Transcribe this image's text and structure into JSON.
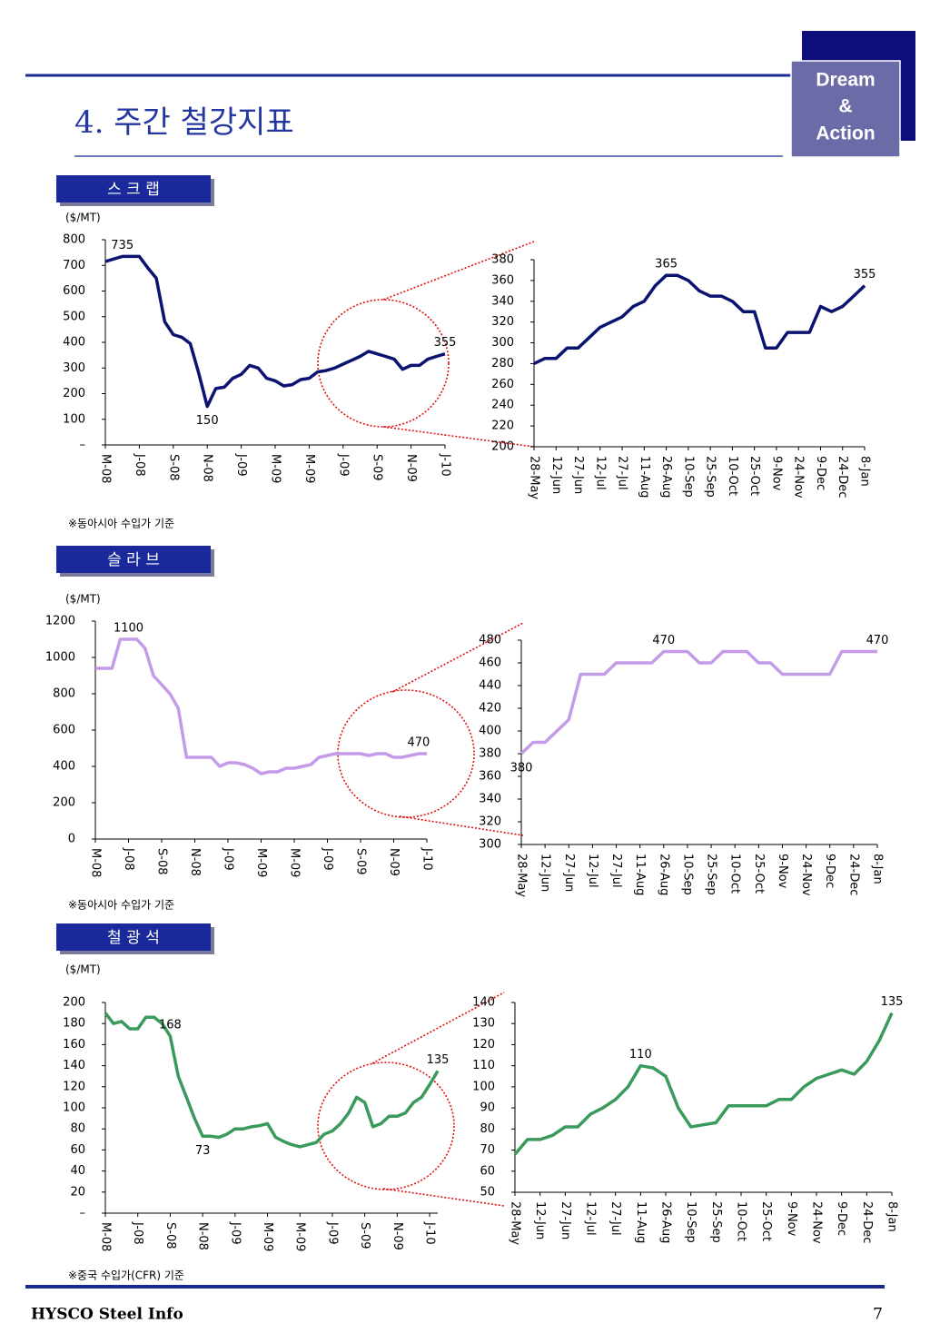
{
  "header": {
    "title": "4. 주간 철강지표",
    "logo": [
      "Dream",
      "&",
      "Action"
    ]
  },
  "sections": [
    {
      "label": "스 크 랩",
      "note": "※동아시아 수입가 기준"
    },
    {
      "label": "슬 라 브",
      "note": "※동아시아 수입가 기준"
    },
    {
      "label": "철 광 석",
      "note": "※중국 수입가(CFR) 기준"
    }
  ],
  "footer": {
    "left": "HYSCO Steel Info",
    "page": "7"
  },
  "chart_data": [
    {
      "type": "line",
      "ylabel": "($/MT)",
      "color": "#0a1470",
      "ylim": [
        0,
        800
      ],
      "yticks": [
        {
          "value": 0,
          "label": "–"
        },
        100,
        200,
        300,
        400,
        500,
        600,
        700,
        800
      ],
      "categories": [
        "M-08",
        null,
        null,
        null,
        "J-08",
        null,
        null,
        null,
        "S-08",
        null,
        null,
        null,
        "N-08",
        null,
        null,
        null,
        "J-09",
        null,
        null,
        null,
        "M-09",
        null,
        null,
        null,
        "M-09",
        null,
        null,
        null,
        "J-09",
        null,
        null,
        null,
        "S-09",
        null,
        null,
        null,
        "N-09",
        null,
        null,
        null,
        "J-10"
      ],
      "values": [
        715,
        725,
        735,
        735,
        735,
        690,
        650,
        480,
        430,
        420,
        395,
        280,
        150,
        220,
        225,
        260,
        275,
        310,
        300,
        260,
        250,
        230,
        235,
        255,
        260,
        285,
        290,
        300,
        315,
        330,
        345,
        365,
        355,
        345,
        335,
        295,
        310,
        310,
        335,
        345,
        355
      ],
      "value_labels": [
        null,
        null,
        "735",
        null,
        null,
        null,
        null,
        null,
        null,
        null,
        null,
        null,
        "150",
        null,
        null,
        null,
        null,
        null,
        null,
        null,
        null,
        null,
        null,
        null,
        null,
        null,
        null,
        null,
        null,
        null,
        null,
        null,
        null,
        null,
        null,
        null,
        null,
        null,
        null,
        null,
        "355"
      ]
    },
    {
      "type": "line",
      "color": "#0a1470",
      "ylim": [
        200,
        380
      ],
      "yticks": [
        200,
        220,
        240,
        260,
        280,
        300,
        320,
        340,
        360,
        380
      ],
      "categories": [
        "28-May",
        null,
        "12-Jun",
        null,
        "27-Jun",
        null,
        "12-Jul",
        null,
        "27-Jul",
        null,
        "11-Aug",
        null,
        "26-Aug",
        null,
        "10-Sep",
        null,
        "25-Sep",
        null,
        "10-Oct",
        null,
        "25-Oct",
        null,
        "9-Nov",
        null,
        "24-Nov",
        null,
        "9-Dec",
        null,
        "24-Dec",
        null,
        "8-Jan"
      ],
      "values": [
        280,
        285,
        285,
        295,
        295,
        305,
        315,
        320,
        325,
        335,
        340,
        355,
        365,
        365,
        360,
        350,
        345,
        345,
        340,
        330,
        330,
        295,
        295,
        310,
        310,
        310,
        335,
        330,
        335,
        345,
        355
      ],
      "value_labels": [
        null,
        null,
        null,
        null,
        null,
        null,
        null,
        null,
        null,
        null,
        null,
        null,
        "365",
        null,
        null,
        null,
        null,
        null,
        null,
        null,
        null,
        null,
        null,
        null,
        null,
        null,
        null,
        null,
        null,
        null,
        "355"
      ]
    },
    {
      "type": "line",
      "ylabel": "($/MT)",
      "color": "#c49be8",
      "ylim": [
        0,
        1200
      ],
      "yticks": [
        0,
        200,
        400,
        600,
        800,
        1000,
        1200
      ],
      "categories": [
        "M-08",
        null,
        null,
        null,
        "J-08",
        null,
        null,
        null,
        "S-08",
        null,
        null,
        null,
        "N-08",
        null,
        null,
        null,
        "J-09",
        null,
        null,
        null,
        "M-09",
        null,
        null,
        null,
        "M-09",
        null,
        null,
        null,
        "J-09",
        null,
        null,
        null,
        "S-09",
        null,
        null,
        null,
        "N-09",
        null,
        null,
        null,
        "J-10"
      ],
      "values": [
        940,
        940,
        940,
        1100,
        1100,
        1100,
        1050,
        900,
        850,
        800,
        720,
        450,
        450,
        450,
        450,
        400,
        420,
        420,
        410,
        390,
        360,
        370,
        370,
        390,
        390,
        400,
        410,
        450,
        460,
        470,
        470,
        470,
        470,
        460,
        470,
        470,
        450,
        450,
        460,
        470,
        470
      ],
      "value_labels": [
        null,
        null,
        null,
        null,
        "1100",
        null,
        null,
        null,
        null,
        null,
        null,
        null,
        null,
        null,
        null,
        null,
        null,
        null,
        null,
        null,
        null,
        null,
        null,
        null,
        null,
        null,
        null,
        null,
        null,
        null,
        null,
        null,
        null,
        null,
        null,
        null,
        null,
        null,
        null,
        "470",
        null
      ]
    },
    {
      "type": "line",
      "color": "#c49be8",
      "ylim": [
        300,
        480
      ],
      "yticks": [
        300,
        320,
        340,
        360,
        380,
        400,
        420,
        440,
        460,
        480
      ],
      "categories": [
        "28-May",
        null,
        "12-Jun",
        null,
        "27-Jun",
        null,
        "12-Jul",
        null,
        "27-Jul",
        null,
        "11-Aug",
        null,
        "26-Aug",
        null,
        "10-Sep",
        null,
        "25-Sep",
        null,
        "10-Oct",
        null,
        "25-Oct",
        null,
        "9-Nov",
        null,
        "24-Nov",
        null,
        "9-Dec",
        null,
        "24-Dec",
        null,
        "8-Jan"
      ],
      "values": [
        380,
        390,
        390,
        400,
        410,
        450,
        450,
        450,
        460,
        460,
        460,
        460,
        470,
        470,
        470,
        460,
        460,
        470,
        470,
        470,
        460,
        460,
        450,
        450,
        450,
        450,
        450,
        470,
        470,
        470,
        470
      ],
      "value_labels": [
        "380",
        null,
        null,
        null,
        null,
        null,
        null,
        null,
        null,
        null,
        null,
        null,
        "470",
        null,
        null,
        null,
        null,
        null,
        null,
        null,
        null,
        null,
        null,
        null,
        null,
        null,
        null,
        null,
        null,
        null,
        "470"
      ]
    },
    {
      "type": "line",
      "ylabel": "($/MT)",
      "color": "#3a9a5c",
      "ylim": [
        0,
        200
      ],
      "yticks": [
        {
          "value": 0,
          "label": "–"
        },
        20,
        40,
        60,
        80,
        100,
        120,
        140,
        160,
        180,
        200
      ],
      "categories": [
        "M-08",
        null,
        null,
        null,
        "J-08",
        null,
        null,
        null,
        "S-08",
        null,
        null,
        null,
        "N-08",
        null,
        null,
        null,
        "J-09",
        null,
        null,
        null,
        "M-09",
        null,
        null,
        null,
        "M-09",
        null,
        null,
        null,
        "J-09",
        null,
        null,
        null,
        "S-09",
        null,
        null,
        null,
        "N-09",
        null,
        null,
        null,
        "J-10",
        null
      ],
      "values": [
        190,
        180,
        182,
        175,
        175,
        186,
        186,
        180,
        168,
        130,
        110,
        90,
        73,
        73,
        72,
        75,
        80,
        80,
        82,
        83,
        85,
        72,
        68,
        65,
        63,
        65,
        67,
        75,
        78,
        85,
        95,
        110,
        105,
        82,
        85,
        92,
        92,
        95,
        105,
        110,
        122,
        135
      ],
      "value_labels": [
        null,
        null,
        null,
        null,
        null,
        null,
        null,
        null,
        "168",
        null,
        null,
        null,
        "73",
        null,
        null,
        null,
        null,
        null,
        null,
        null,
        null,
        null,
        null,
        null,
        null,
        null,
        null,
        null,
        null,
        null,
        null,
        null,
        null,
        null,
        null,
        null,
        null,
        null,
        null,
        null,
        null,
        "135"
      ]
    },
    {
      "type": "line",
      "color": "#3a9a5c",
      "ylim": [
        50,
        140
      ],
      "yticks": [
        50,
        60,
        70,
        80,
        90,
        100,
        110,
        120,
        130,
        140
      ],
      "categories": [
        "28-May",
        null,
        "12-Jun",
        null,
        "27-Jun",
        null,
        "12-Jul",
        null,
        "27-Jul",
        null,
        "11-Aug",
        null,
        "26-Aug",
        null,
        "10-Sep",
        null,
        "25-Sep",
        null,
        "10-Oct",
        null,
        "25-Oct",
        null,
        "9-Nov",
        null,
        "24-Nov",
        null,
        "9-Dec",
        null,
        "24-Dec",
        null,
        "8-Jan"
      ],
      "values": [
        68,
        75,
        75,
        77,
        81,
        81,
        87,
        90,
        94,
        100,
        110,
        109,
        105,
        90,
        81,
        82,
        83,
        91,
        91,
        91,
        91,
        94,
        94,
        100,
        104,
        106,
        108,
        106,
        112,
        122,
        135
      ],
      "value_labels": [
        null,
        null,
        null,
        null,
        null,
        null,
        null,
        null,
        null,
        null,
        "110",
        null,
        null,
        null,
        null,
        null,
        null,
        null,
        null,
        null,
        null,
        null,
        null,
        null,
        null,
        null,
        null,
        null,
        null,
        null,
        "135"
      ]
    }
  ]
}
